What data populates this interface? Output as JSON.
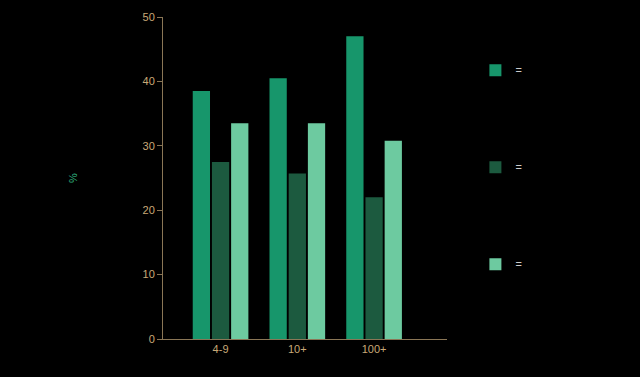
{
  "chart_data": {
    "type": "bar",
    "y_label": "%",
    "categories": [
      "4-9",
      "10+",
      "100+"
    ],
    "series": [
      {
        "name": "=",
        "color": "#17966b",
        "values": [
          38.5,
          40.5,
          47
        ]
      },
      {
        "name": "=",
        "color": "#1c5a3f",
        "values": [
          27.5,
          25.7,
          22
        ]
      },
      {
        "name": "=",
        "color": "#6dcaa0",
        "values": [
          33.5,
          33.5,
          30.8
        ]
      }
    ],
    "ylim": [
      0,
      50
    ],
    "yticks": [
      0,
      10,
      20,
      30,
      40,
      50
    ],
    "grid": false,
    "legend": "right"
  }
}
